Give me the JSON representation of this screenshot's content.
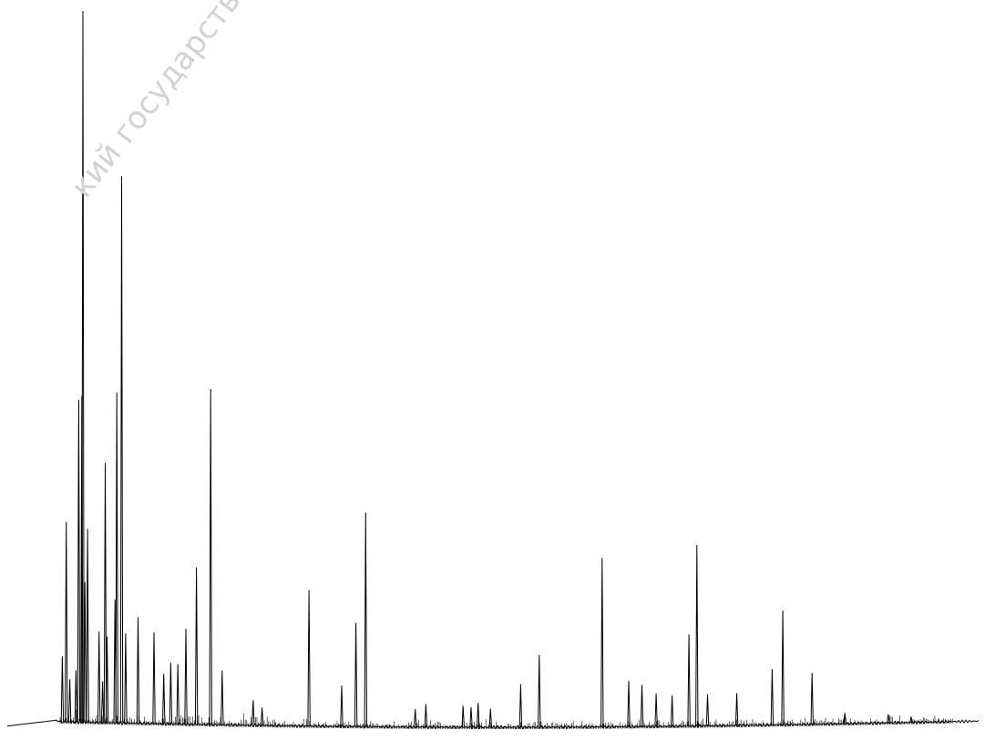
{
  "watermark": "кий государственный ун",
  "colors": {
    "trace": "#000000",
    "background": "#ffffff",
    "watermark": "#d2d2d2"
  },
  "chart_data": {
    "type": "line",
    "title": "",
    "xlabel": "",
    "ylabel": "",
    "grid": false,
    "legend": "none",
    "xlim": [
      0,
      100
    ],
    "ylim": [
      0,
      100
    ],
    "peaks": [
      {
        "x": 0.45,
        "y": 9.2
      },
      {
        "x": 0.9,
        "y": 28.1
      },
      {
        "x": 1.3,
        "y": 6.0
      },
      {
        "x": 2.0,
        "y": 7.3
      },
      {
        "x": 2.3,
        "y": 45.3
      },
      {
        "x": 2.65,
        "y": 45.9
      },
      {
        "x": 2.78,
        "y": 100.0
      },
      {
        "x": 3.0,
        "y": 19.7
      },
      {
        "x": 3.3,
        "y": 27.2
      },
      {
        "x": 4.6,
        "y": 12.8
      },
      {
        "x": 5.0,
        "y": 5.8
      },
      {
        "x": 5.3,
        "y": 36.5
      },
      {
        "x": 5.5,
        "y": 12.1
      },
      {
        "x": 6.4,
        "y": 17.3
      },
      {
        "x": 6.6,
        "y": 46.4
      },
      {
        "x": 7.15,
        "y": 76.8
      },
      {
        "x": 7.6,
        "y": 12.6
      },
      {
        "x": 9.0,
        "y": 14.9
      },
      {
        "x": 10.8,
        "y": 12.8
      },
      {
        "x": 11.9,
        "y": 7.0
      },
      {
        "x": 12.7,
        "y": 8.6
      },
      {
        "x": 13.5,
        "y": 8.4
      },
      {
        "x": 14.4,
        "y": 13.4
      },
      {
        "x": 15.6,
        "y": 22.0
      },
      {
        "x": 17.2,
        "y": 47.0
      },
      {
        "x": 18.5,
        "y": 7.6
      },
      {
        "x": 22.0,
        "y": 3.5
      },
      {
        "x": 23.0,
        "y": 2.5
      },
      {
        "x": 28.3,
        "y": 19.0
      },
      {
        "x": 32.0,
        "y": 5.7
      },
      {
        "x": 33.6,
        "y": 14.5
      },
      {
        "x": 34.7,
        "y": 29.9
      },
      {
        "x": 40.3,
        "y": 2.5
      },
      {
        "x": 41.5,
        "y": 3.2
      },
      {
        "x": 45.7,
        "y": 3.0
      },
      {
        "x": 46.6,
        "y": 2.8
      },
      {
        "x": 47.4,
        "y": 3.4
      },
      {
        "x": 48.8,
        "y": 2.6
      },
      {
        "x": 52.2,
        "y": 6.0
      },
      {
        "x": 54.3,
        "y": 10.1
      },
      {
        "x": 61.4,
        "y": 23.6
      },
      {
        "x": 64.4,
        "y": 6.4
      },
      {
        "x": 65.9,
        "y": 5.8
      },
      {
        "x": 67.5,
        "y": 4.6
      },
      {
        "x": 69.3,
        "y": 4.3
      },
      {
        "x": 71.2,
        "y": 12.8
      },
      {
        "x": 72.1,
        "y": 25.3
      },
      {
        "x": 73.3,
        "y": 4.4
      },
      {
        "x": 76.6,
        "y": 4.5
      },
      {
        "x": 80.6,
        "y": 7.8
      },
      {
        "x": 81.8,
        "y": 16.0
      },
      {
        "x": 85.1,
        "y": 7.2
      },
      {
        "x": 88.8,
        "y": 1.5
      },
      {
        "x": 93.7,
        "y": 1.2
      },
      {
        "x": 96.3,
        "y": 0.8
      }
    ]
  }
}
